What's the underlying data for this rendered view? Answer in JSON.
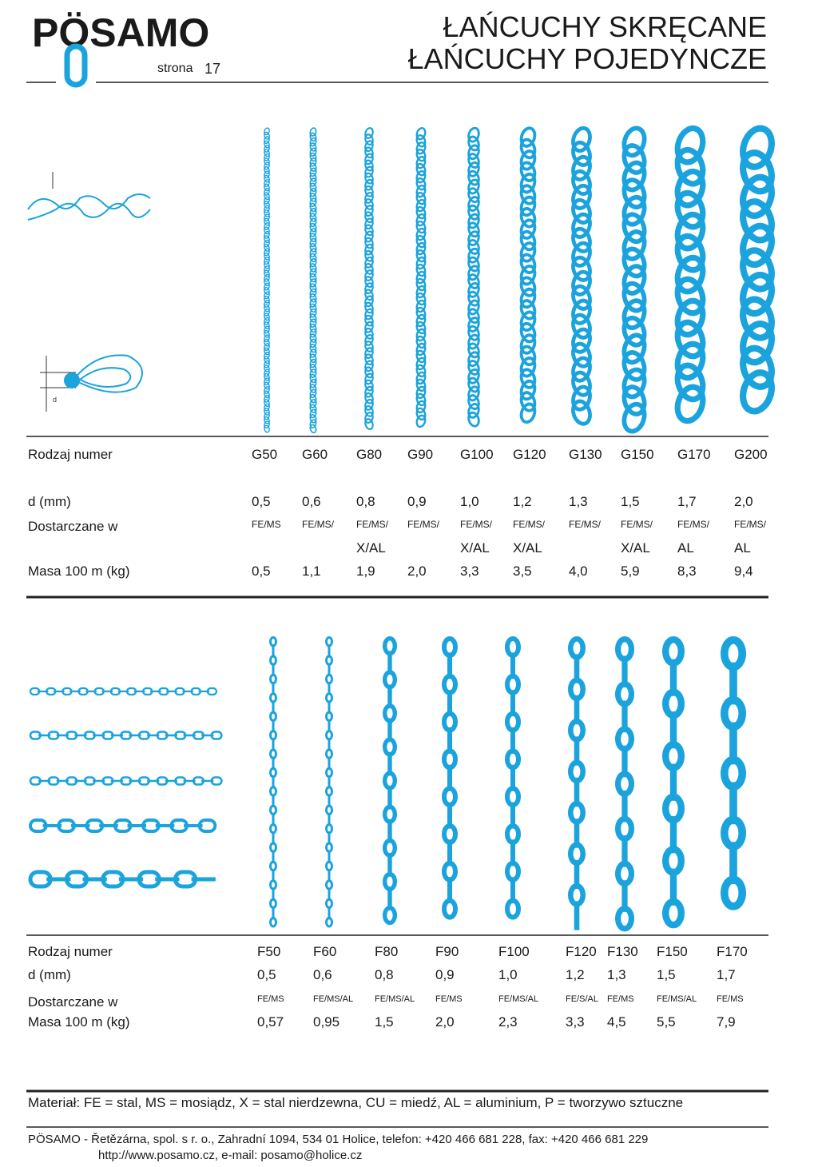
{
  "header": {
    "logo": "PÖSAMO",
    "page_label": "strona",
    "page_number": "17",
    "title_lines": [
      "ŁAŃCUCHY  SKRĘCANE",
      "ŁAŃCUCHY  POJEDYNCZE"
    ]
  },
  "diagram": {
    "dimension_label": "d"
  },
  "table_1": {
    "rows": [
      {
        "label": "Rodzaj numer",
        "cells": [
          "G50",
          "G60",
          "G80",
          "G90",
          "G100",
          "G120",
          "G130",
          "G150",
          "G170",
          "G200"
        ]
      },
      {
        "label": "d (mm)",
        "cells": [
          "0,5",
          "0,6",
          "0,8",
          "0,9",
          "1,0",
          "1,2",
          "1,3",
          "1,5",
          "1,7",
          "2,0"
        ]
      },
      {
        "label": "Dostarczane w",
        "cells": [
          [
            "FE/MS"
          ],
          [
            "FE/MS/"
          ],
          [
            "FE/MS/",
            "X/AL"
          ],
          [
            "FE/MS/"
          ],
          [
            "FE/MS/",
            "X/AL"
          ],
          [
            "FE/MS/",
            "X/AL"
          ],
          [
            "FE/MS/"
          ],
          [
            "FE/MS/",
            "X/AL"
          ],
          [
            "FE/MS/",
            "AL"
          ],
          [
            "FE/MS/",
            "AL"
          ]
        ]
      },
      {
        "label": "Masa 100 m (kg)",
        "cells": [
          "0,5",
          "1,1",
          "1,9",
          "2,0",
          "3,3",
          "3,5",
          "4,0",
          "5,9",
          "8,3",
          "9,4"
        ]
      }
    ]
  },
  "table_2": {
    "rows": [
      {
        "label": "Rodzaj numer",
        "cells": [
          "F50",
          "F60",
          "F80",
          "F90",
          "F100",
          "F120",
          "F130",
          "F150",
          "F170"
        ]
      },
      {
        "label": "d (mm)",
        "cells": [
          "0,5",
          "0,6",
          "0,8",
          "0,9",
          "1,0",
          "1,2",
          "1,3",
          "1,5",
          "1,7"
        ]
      },
      {
        "label": "Dostarczane w",
        "cells": [
          "FE/MS",
          "FE/MS/AL",
          "FE/MS/AL",
          "FE/MS",
          "FE/MS/AL",
          "FE/S/AL",
          "FE/MS",
          "FE/MS/AL",
          "FE/MS"
        ]
      },
      {
        "label": "Masa 100 m (kg)",
        "cells": [
          "0,57",
          "0,95",
          "1,5",
          "2,0",
          "2,3",
          "3,3",
          "4,5",
          "5,5",
          "7,9"
        ]
      }
    ]
  },
  "footer": {
    "material_note": "Materiał: FE = stal, MS = mosiądz, X = stal nierdzewna, CU = miedź, AL = aluminium, P = tworzywo sztuczne",
    "address": "PÖSAMO - Řetězárna, spol. s r. o., Zahradní 1094, 534 01 Holice, telefon: +420 466 681 228, fax: +420 466 681 229",
    "web": "http://www.posamo.cz, e-mail: posamo@holice.cz"
  }
}
